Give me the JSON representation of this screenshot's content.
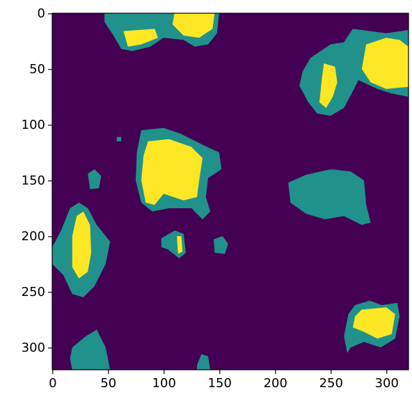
{
  "chart_data": {
    "type": "image",
    "xlim": [
      -0.5,
      319.5
    ],
    "ylim": [
      319.5,
      -0.5
    ],
    "xticks": [
      0,
      50,
      100,
      150,
      200,
      250,
      300
    ],
    "yticks": [
      0,
      50,
      100,
      150,
      200,
      250,
      300
    ],
    "colors": [
      "#440154",
      "#21918c",
      "#fde725"
    ]
  }
}
